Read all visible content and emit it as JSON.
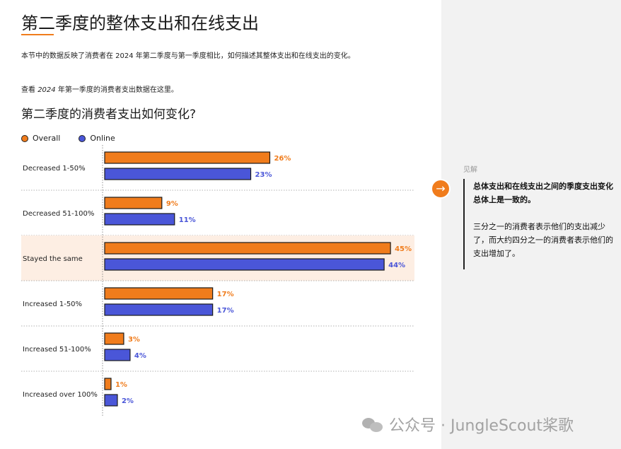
{
  "header": {
    "title": "第二季度的整体支出和在线支出",
    "intro": "本节中的数据反映了消费者在 2024 年第二季度与第一季度相比，如何描述其整体支出和在线支出的变化。",
    "intro2_prefix": "查看 ",
    "intro2_year": "2024",
    "intro2_suffix": " 年第一季度的消费者支出数据在这里。"
  },
  "chart_data": {
    "type": "bar",
    "orientation": "horizontal",
    "title": "第二季度的消费者支出如何变化?",
    "categories": [
      "Decreased 1-50%",
      "Decreased 51-100%",
      "Stayed the same",
      "Increased 1-50%",
      "Increased 51-100%",
      "Increased over 100%"
    ],
    "series": [
      {
        "name": "Overall",
        "values": [
          26,
          9,
          45,
          17,
          3,
          1
        ],
        "value_labels": [
          "26%",
          "9%",
          "45%",
          "17%",
          "3%",
          "1%"
        ],
        "color": "#f07c1c"
      },
      {
        "name": "Online",
        "values": [
          23,
          11,
          44,
          17,
          4,
          2
        ],
        "value_labels": [
          "23%",
          "11%",
          "44%",
          "17%",
          "4%",
          "2%"
        ],
        "color": "#4a56d8"
      }
    ],
    "highlight_category": "Stayed the same",
    "highlight_color": "#fdeee3",
    "legend_position": "top-left",
    "grid": false
  },
  "insight": {
    "label": "见解",
    "arrow_icon": "arrow-right-icon",
    "headline": "总体支出和在线支出之间的季度支出变化总体上是一致的。",
    "body": "三分之一的消费者表示他们的支出减少了，而大约四分之一的消费者表示他们的支出增加了。"
  },
  "watermark": {
    "icon": "wechat-icon",
    "text": "公众号 · JungleScout桨歌"
  }
}
